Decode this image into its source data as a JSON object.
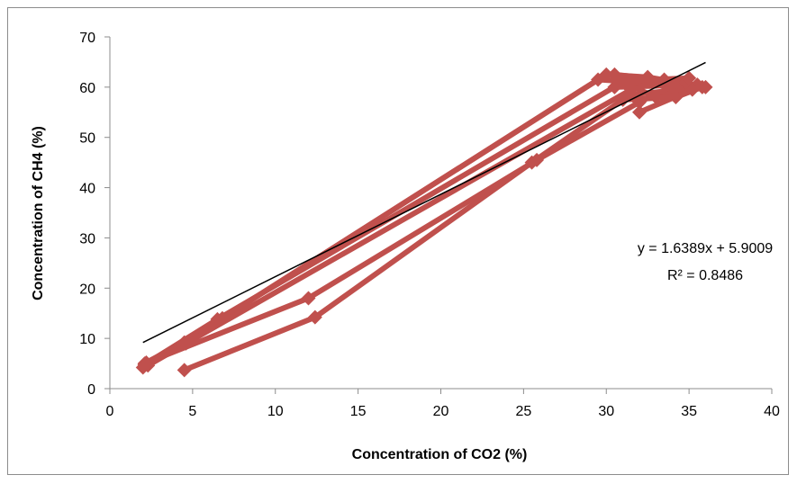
{
  "chart_data": {
    "type": "line",
    "title": "",
    "xlabel": "Concentration of CO2 (%)",
    "ylabel": "Concentration of CH4 (%)",
    "xlim": [
      0,
      40
    ],
    "ylim": [
      0,
      70
    ],
    "xticks": [
      0,
      5,
      10,
      15,
      20,
      25,
      30,
      35,
      40
    ],
    "yticks": [
      0,
      10,
      20,
      30,
      40,
      50,
      60,
      70
    ],
    "grid": false,
    "legend": "none",
    "series_color": "#c0504d",
    "trendline_color": "#000000",
    "series": [
      {
        "points": [
          [
            2.1,
            4.8
          ],
          [
            6.5,
            13.8
          ],
          [
            31,
            61
          ],
          [
            33,
            58
          ],
          [
            35.5,
            60.5
          ],
          [
            30.5,
            60
          ]
        ]
      },
      {
        "points": [
          [
            2.2,
            5.2
          ],
          [
            4.5,
            9.2
          ],
          [
            30,
            62.5
          ],
          [
            32.5,
            62
          ],
          [
            36,
            60
          ],
          [
            31.5,
            58.5
          ]
        ]
      },
      {
        "points": [
          [
            2.0,
            4.2
          ],
          [
            6.8,
            14.0
          ],
          [
            29.5,
            61.5
          ],
          [
            34,
            60.5
          ],
          [
            35.2,
            59.5
          ],
          [
            32,
            55
          ]
        ]
      },
      {
        "points": [
          [
            2.3,
            4.6
          ],
          [
            4.6,
            9.0
          ],
          [
            31.5,
            59.5
          ],
          [
            33.5,
            61.5
          ],
          [
            34.8,
            61
          ],
          [
            30.5,
            62.5
          ]
        ]
      },
      {
        "points": [
          [
            4.5,
            3.7
          ],
          [
            12.4,
            14.2
          ],
          [
            25.5,
            45
          ],
          [
            31,
            57.5
          ],
          [
            34.2,
            58
          ],
          [
            35.8,
            60
          ]
        ]
      },
      {
        "points": [
          [
            2.1,
            5.0
          ],
          [
            12.0,
            18.0
          ],
          [
            25.8,
            45.5
          ],
          [
            32,
            57
          ],
          [
            35,
            61.8
          ],
          [
            30.8,
            61.2
          ]
        ]
      }
    ],
    "trendline": {
      "slope": 1.6389,
      "intercept": 5.9009,
      "x_range": [
        2,
        36
      ],
      "equation_label": "y = 1.6389x + 5.9009",
      "r2_label": "R² = 0.8486"
    }
  }
}
